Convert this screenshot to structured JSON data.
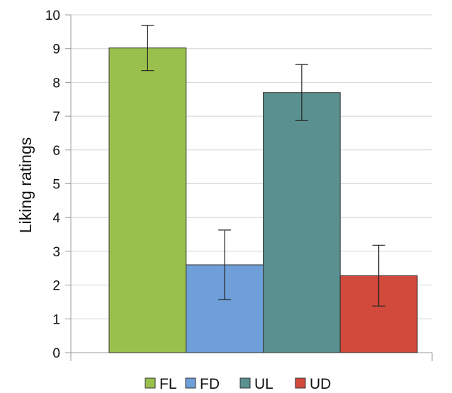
{
  "chart_data": {
    "type": "bar",
    "title": "",
    "xlabel": "",
    "ylabel": "Liking ratings",
    "ylim": [
      0,
      10
    ],
    "yticks": [
      0,
      1,
      2,
      3,
      4,
      5,
      6,
      7,
      8,
      9,
      10
    ],
    "grid": true,
    "legend_position": "bottom",
    "series": [
      {
        "name": "FL",
        "value": 9.02,
        "error": 0.67,
        "color": "#99c04c"
      },
      {
        "name": "FD",
        "value": 2.6,
        "error": 1.03,
        "color": "#6f9fd8"
      },
      {
        "name": "UL",
        "value": 7.7,
        "error": 0.83,
        "color": "#5b9090"
      },
      {
        "name": "UD",
        "value": 2.28,
        "error": 0.9,
        "color": "#d24a3c"
      }
    ]
  }
}
